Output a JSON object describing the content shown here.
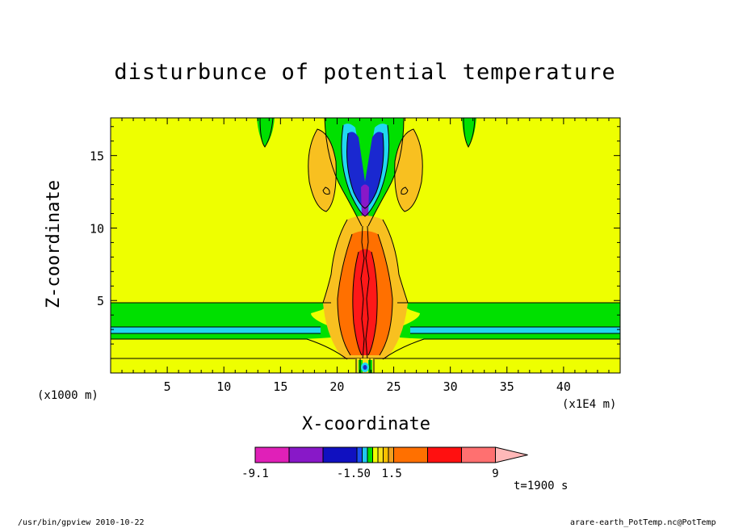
{
  "chart_data": {
    "type": "heatmap",
    "title": "disturbunce of potential temperature",
    "xlabel": "X-coordinate",
    "ylabel": "Z-coordinate",
    "x_unit_left": "(x1000 m)",
    "x_unit_right": "(x1E4 m)",
    "xlim": [
      0,
      45
    ],
    "ylim": [
      0,
      17.6
    ],
    "xticks": [
      5,
      10,
      15,
      20,
      25,
      30,
      35,
      40
    ],
    "yticks": [
      5,
      10,
      15
    ],
    "time_label": "t=1900 s",
    "colorbar": {
      "tick_labels": [
        "-9.1",
        "-1.50",
        "1.5",
        "9"
      ],
      "levels": [
        -9.1,
        -7.0,
        -4.5,
        -3.0,
        -1.5,
        -1.0,
        -0.5,
        0.5,
        1.0,
        1.5,
        3.0,
        4.5,
        7.0,
        9.0
      ],
      "colors": [
        "#e020b8",
        "#8818c8",
        "#1010c0",
        "#1a4ff0",
        "#20c8f0",
        "#00e000",
        "#f0ff00",
        "#f8e018",
        "#f8c000",
        "#f0a020",
        "#ff7000",
        "#ff1010",
        "#ff7070",
        "#ffb8b8"
      ]
    },
    "field_colors": {
      "background": "#eeff00",
      "green": "#00e000",
      "cyan": "#20d8f0",
      "blue": "#1a28d0",
      "navy": "#0a0a90",
      "purple": "#8818c8",
      "lightorange": "#f8c020",
      "orange": "#ff7000",
      "red": "#ff1818"
    }
  },
  "footer": {
    "left": "/usr/bin/gpview   2010-10-22",
    "right": "arare-earth_PotTemp.nc@PotTemp"
  }
}
